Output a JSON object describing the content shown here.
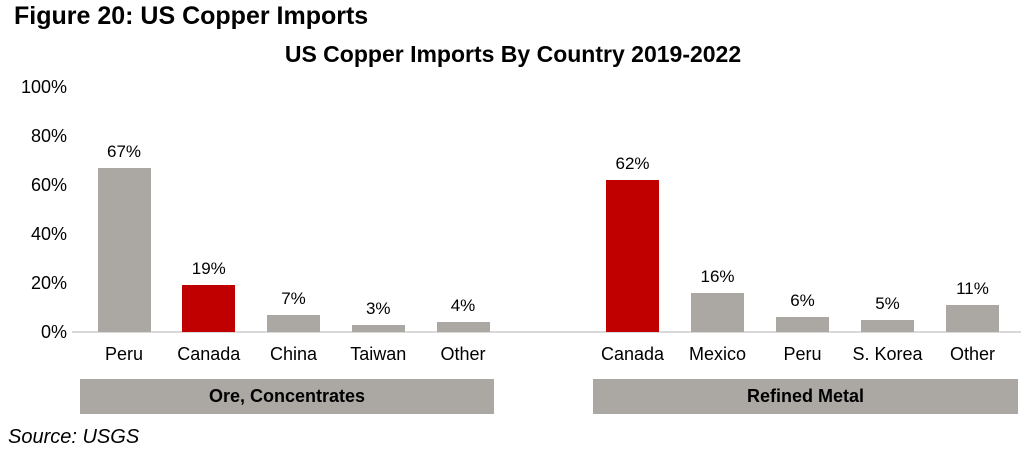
{
  "figure_title": "Figure 20: US Copper Imports",
  "source_note": "Source: USGS",
  "colors": {
    "background": "#FFFFFF",
    "text": "#000000",
    "bar_default": "#ABA8A4",
    "bar_highlight": "#C00000",
    "band_background": "#ABA8A4",
    "axis_line": "#D9D9D9"
  },
  "chart_data": {
    "type": "bar",
    "title": "US Copper Imports By Country 2019-2022",
    "xlabel": "",
    "ylabel": "",
    "ylim": [
      0,
      100
    ],
    "grid": false,
    "legend": "none",
    "ytick_labels_top_to_bottom": [
      "100%",
      "80%",
      "60%",
      "40%",
      "20%",
      "0%"
    ],
    "value_suffix": "%",
    "groups": [
      {
        "label": "Ore, Concentrates",
        "categories": [
          "Peru",
          "Canada",
          "China",
          "Taiwan",
          "Other"
        ],
        "values": [
          67,
          19,
          7,
          3,
          4
        ],
        "highlight_category": "Canada",
        "highlight_index": 1
      },
      {
        "label": "Refined Metal",
        "categories": [
          "Canada",
          "Mexico",
          "Peru",
          "S. Korea",
          "Other"
        ],
        "values": [
          62,
          16,
          6,
          5,
          11
        ],
        "highlight_category": "Canada",
        "highlight_index": 0
      }
    ]
  }
}
